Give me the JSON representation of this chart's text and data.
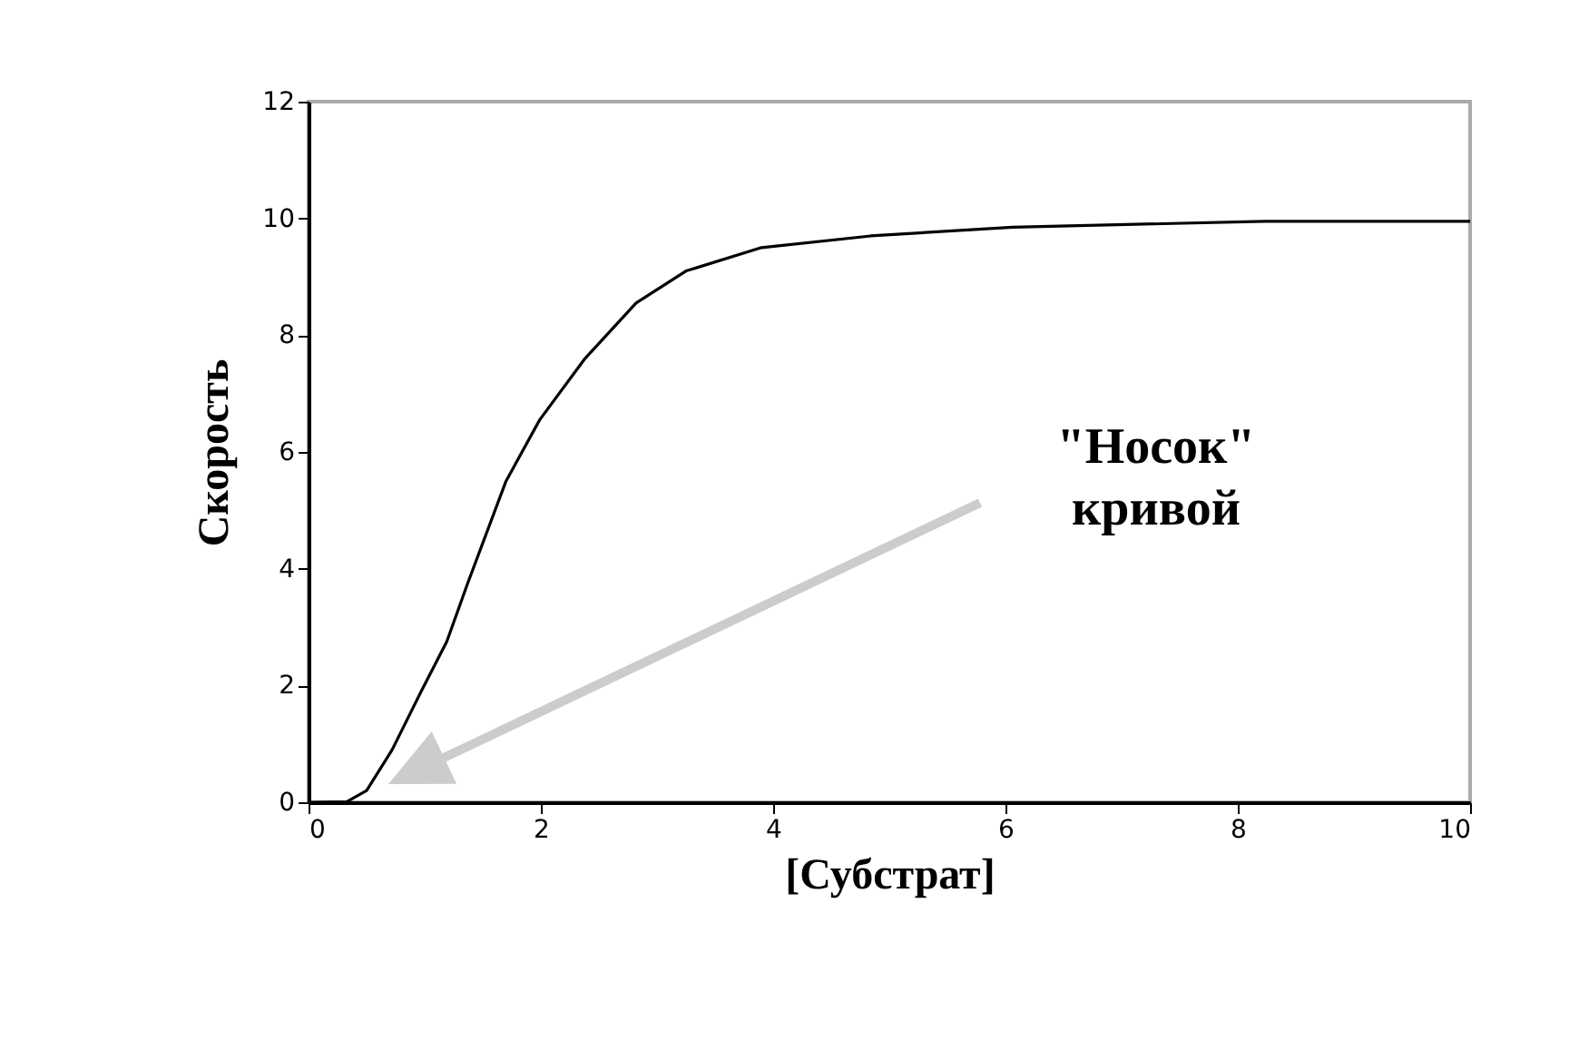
{
  "chart_data": {
    "type": "line",
    "xlabel": "[Субстрат]",
    "ylabel": "Скорость",
    "x": [
      0,
      0.33,
      0.5,
      0.72,
      0.97,
      1.19,
      1.37,
      1.7,
      1.99,
      2.38,
      2.82,
      3.25,
      3.9,
      4.84,
      6.06,
      8.23,
      10
    ],
    "series": [
      {
        "color": "#000000",
        "values": [
          0,
          0.01,
          0.2,
          0.9,
          1.9,
          2.75,
          3.75,
          5.5,
          6.55,
          7.6,
          8.55,
          9.1,
          9.5,
          9.7,
          9.85,
          9.95,
          9.95
        ]
      }
    ],
    "xlim": [
      0,
      10
    ],
    "xticks": [
      0,
      2,
      4,
      6,
      8,
      10
    ],
    "ylim": [
      0,
      12
    ],
    "yticks": [
      0,
      2,
      4,
      6,
      8,
      10,
      12
    ],
    "annotations": [
      "\"Носок\" кривой"
    ],
    "grid": false,
    "marker": "none",
    "line_style": "solid"
  }
}
